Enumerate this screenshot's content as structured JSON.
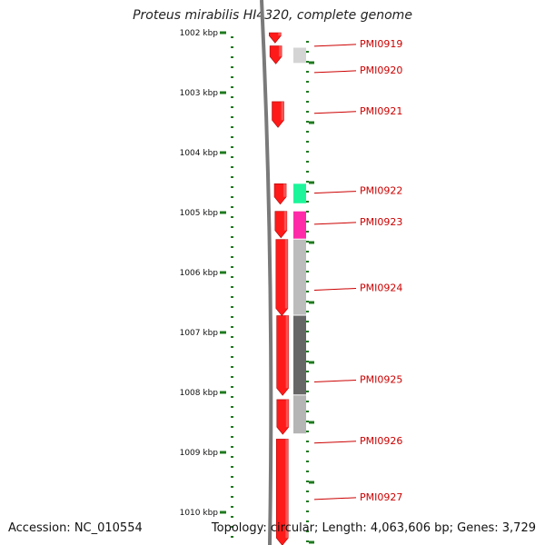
{
  "title": "Proteus mirabilis HI4320, complete genome",
  "accession": "Accession: NC_010554",
  "summary": "Topology: circular; Length: 4,063,606 bp; Genes: 3,729",
  "kbp_labels": [
    "1002 kbp",
    "1003 kbp",
    "1004 kbp",
    "1005 kbp",
    "1006 kbp",
    "1007 kbp",
    "1008 kbp",
    "1009 kbp",
    "1010 kbp"
  ],
  "genes": [
    {
      "id": "PMI0919",
      "start": 1002.0,
      "end": 1002.17
    },
    {
      "id": "PMI0920",
      "start": 1002.22,
      "end": 1002.52
    },
    {
      "id": "PMI0921",
      "start": 1003.15,
      "end": 1003.58
    },
    {
      "id": "PMI0922",
      "start": 1004.52,
      "end": 1004.86
    },
    {
      "id": "PMI0923",
      "start": 1004.98,
      "end": 1005.42
    },
    {
      "id": "PMI0924",
      "start": 1005.45,
      "end": 1006.72
    },
    {
      "id": "PMI0925",
      "start": 1006.72,
      "end": 1008.05
    },
    {
      "id": "PMI0926",
      "start": 1008.12,
      "end": 1008.7
    },
    {
      "id": "PMI0927",
      "start": 1008.78,
      "end": 1010.55
    }
  ],
  "colors": {
    "gene": "#ff1a1a",
    "gene_dark": "#b30000",
    "tick": "#1f7a1f",
    "backbone": "#7a7a7a",
    "label": "#cc0000",
    "cog": [
      "#d4d4d4",
      "#1cf59a",
      "#ff2aa8",
      "#bcbcbc",
      "#666666",
      "#b5b5b5"
    ]
  },
  "cog_blocks": [
    {
      "start": 1002.25,
      "end": 1002.52,
      "color_index": 0
    },
    {
      "start": 1004.52,
      "end": 1004.86,
      "color_index": 1
    },
    {
      "start": 1004.98,
      "end": 1005.45,
      "color_index": 2
    },
    {
      "start": 1005.45,
      "end": 1006.72,
      "color_index": 3
    },
    {
      "start": 1006.72,
      "end": 1008.05,
      "color_index": 4
    },
    {
      "start": 1008.05,
      "end": 1008.7,
      "color_index": 5
    }
  ]
}
